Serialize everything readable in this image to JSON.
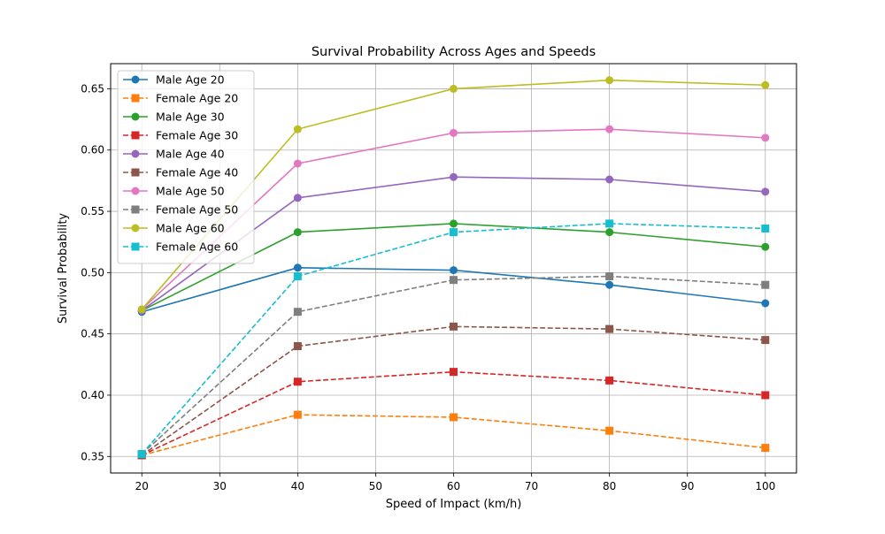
{
  "chart_data": {
    "type": "line",
    "title": "Survival Probability Across Ages and Speeds",
    "xlabel": "Speed of Impact (km/h)",
    "ylabel": "Survival Probability",
    "x": [
      20,
      40,
      60,
      80,
      100
    ],
    "xlim": [
      16,
      104
    ],
    "ylim": [
      0.3365,
      0.6705
    ],
    "xticks": [
      20,
      30,
      40,
      50,
      60,
      70,
      80,
      90,
      100
    ],
    "xtick_labels": [
      "20",
      "30",
      "40",
      "50",
      "60",
      "70",
      "80",
      "90",
      "100"
    ],
    "yticks": [
      0.35,
      0.4,
      0.45,
      0.5,
      0.55,
      0.6,
      0.65
    ],
    "ytick_labels": [
      "0.35",
      "0.40",
      "0.45",
      "0.50",
      "0.55",
      "0.60",
      "0.65"
    ],
    "grid": true,
    "legend_position": "upper-left",
    "series": [
      {
        "name": "Male Age 20",
        "color": "#1f77b4",
        "marker": "circle",
        "linestyle": "solid",
        "values": [
          0.468,
          0.504,
          0.502,
          0.49,
          0.475
        ]
      },
      {
        "name": "Female Age 20",
        "color": "#ff7f0e",
        "marker": "square",
        "linestyle": "dashed",
        "values": [
          0.351,
          0.384,
          0.382,
          0.371,
          0.357
        ]
      },
      {
        "name": "Male Age 30",
        "color": "#2ca02c",
        "marker": "circle",
        "linestyle": "solid",
        "values": [
          0.469,
          0.533,
          0.54,
          0.533,
          0.521
        ]
      },
      {
        "name": "Female Age 30",
        "color": "#d62728",
        "marker": "square",
        "linestyle": "dashed",
        "values": [
          0.351,
          0.411,
          0.419,
          0.412,
          0.4
        ]
      },
      {
        "name": "Male Age 40",
        "color": "#9467bd",
        "marker": "circle",
        "linestyle": "solid",
        "values": [
          0.469,
          0.561,
          0.578,
          0.576,
          0.566
        ]
      },
      {
        "name": "Female Age 40",
        "color": "#8c564b",
        "marker": "square",
        "linestyle": "dashed",
        "values": [
          0.351,
          0.44,
          0.456,
          0.454,
          0.445
        ]
      },
      {
        "name": "Male Age 50",
        "color": "#e377c2",
        "marker": "circle",
        "linestyle": "solid",
        "values": [
          0.47,
          0.589,
          0.614,
          0.617,
          0.61
        ]
      },
      {
        "name": "Female Age 50",
        "color": "#7f7f7f",
        "marker": "square",
        "linestyle": "dashed",
        "values": [
          0.352,
          0.468,
          0.494,
          0.497,
          0.49
        ]
      },
      {
        "name": "Male Age 60",
        "color": "#bcbd22",
        "marker": "circle",
        "linestyle": "solid",
        "values": [
          0.47,
          0.617,
          0.65,
          0.657,
          0.653
        ]
      },
      {
        "name": "Female Age 60",
        "color": "#17becf",
        "marker": "square",
        "linestyle": "dashed",
        "values": [
          0.352,
          0.497,
          0.533,
          0.54,
          0.536
        ]
      }
    ]
  }
}
